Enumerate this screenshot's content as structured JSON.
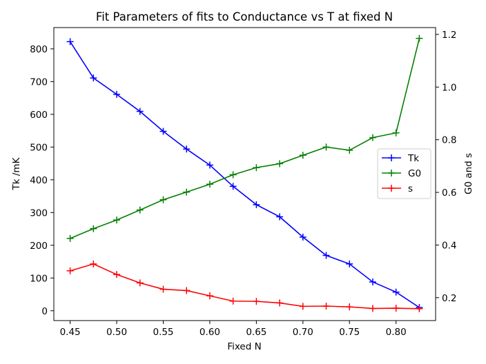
{
  "chart_data": {
    "type": "line",
    "title": "Fit Parameters of fits to Conductance vs T at fixed N",
    "xlabel": "Fixed N",
    "ylabel_left": "Tk /mK",
    "ylabel_right": "G0 and s",
    "x": [
      0.45,
      0.475,
      0.5,
      0.525,
      0.55,
      0.575,
      0.6,
      0.625,
      0.65,
      0.675,
      0.7,
      0.725,
      0.75,
      0.775,
      0.8,
      0.825
    ],
    "xlim": [
      0.4325,
      0.8425
    ],
    "ylim_left": [
      -30,
      865
    ],
    "ylim_right": [
      0.113,
      1.226
    ],
    "xticks": [
      0.45,
      0.5,
      0.55,
      0.6,
      0.65,
      0.7,
      0.75,
      0.8
    ],
    "xtick_labels": [
      "0.45",
      "0.50",
      "0.55",
      "0.60",
      "0.65",
      "0.70",
      "0.75",
      "0.80"
    ],
    "yticks_left": [
      0,
      100,
      200,
      300,
      400,
      500,
      600,
      700,
      800
    ],
    "ytick_labels_left": [
      "0",
      "100",
      "200",
      "300",
      "400",
      "500",
      "600",
      "700",
      "800"
    ],
    "yticks_right": [
      0.2,
      0.4,
      0.6,
      0.8,
      1.0,
      1.2
    ],
    "ytick_labels_right": [
      "0.2",
      "0.4",
      "0.6",
      "0.8",
      "1.0",
      "1.2"
    ],
    "grid": false,
    "legend_position": "center-right",
    "series": [
      {
        "name": "Tk",
        "axis": "left",
        "color": "#0000ff",
        "marker": "+",
        "values": [
          822,
          711,
          661,
          609,
          548,
          494,
          445,
          380,
          324,
          287,
          225,
          169,
          143,
          88,
          57,
          10
        ]
      },
      {
        "name": "G0",
        "axis": "right",
        "color": "#008000",
        "marker": "+",
        "values": [
          0.425,
          0.462,
          0.495,
          0.533,
          0.572,
          0.601,
          0.631,
          0.667,
          0.694,
          0.709,
          0.741,
          0.772,
          0.76,
          0.808,
          0.826,
          1.185
        ]
      },
      {
        "name": "s",
        "axis": "right",
        "color": "#ff0000",
        "marker": "+",
        "values": [
          0.302,
          0.328,
          0.288,
          0.256,
          0.232,
          0.227,
          0.207,
          0.187,
          0.186,
          0.18,
          0.167,
          0.168,
          0.165,
          0.159,
          0.16,
          0.158
        ]
      }
    ]
  }
}
